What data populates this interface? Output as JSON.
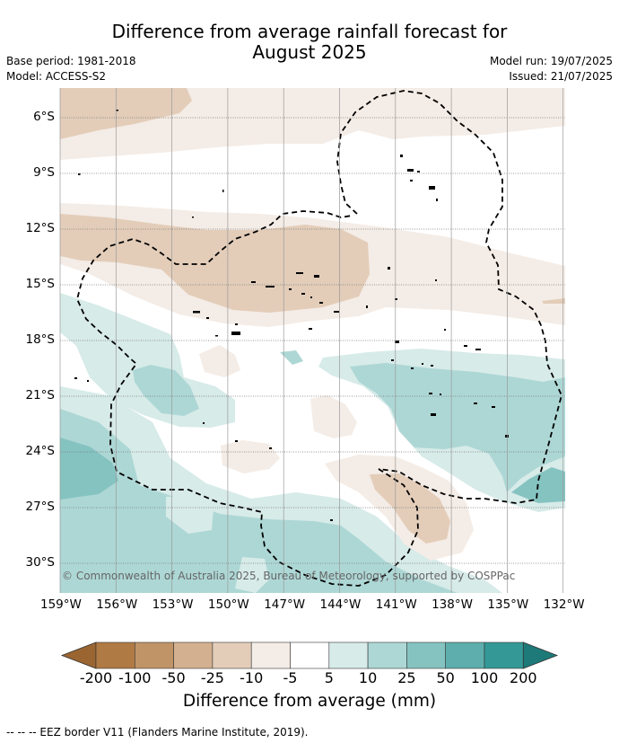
{
  "title": {
    "line1": "Difference from average rainfall forecast for",
    "line2": "August 2025"
  },
  "info": {
    "base_period": "Base period: 1981-2018",
    "model": "Model: ACCESS-S2",
    "model_run": "Model run: 19/07/2025",
    "issued": "Issued: 21/07/2025"
  },
  "map": {
    "lat_labels": [
      "6°S",
      "9°S",
      "12°S",
      "15°S",
      "18°S",
      "21°S",
      "24°S",
      "27°S",
      "30°S"
    ],
    "lon_labels": [
      "159°W",
      "156°W",
      "153°W",
      "150°W",
      "147°W",
      "144°W",
      "141°W",
      "138°W",
      "135°W",
      "132°W"
    ],
    "copyright": "© Commonwealth of Australia 2025, Bureau of Meteorology, supported by COSPPac"
  },
  "colorbar": {
    "tick_labels": [
      "-200",
      "-100",
      "-50",
      "-25",
      "-10",
      "-5",
      "5",
      "10",
      "25",
      "50",
      "100",
      "200"
    ],
    "colors": [
      "#b07a45",
      "#c19468",
      "#d3b08f",
      "#e3cdb9",
      "#f4ece6",
      "#ffffff",
      "#d7ebe9",
      "#add7d5",
      "#85c3c1",
      "#5daeac",
      "#349896"
    ],
    "title": "Difference from average (mm)"
  },
  "legend_note": "--  --  -- EEZ border V11 (Flanders Marine Institute, 2019)."
}
